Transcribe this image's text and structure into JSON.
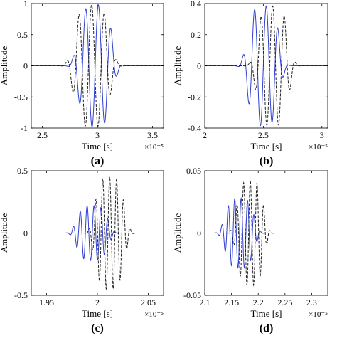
{
  "chart_data": [
    {
      "type": "line",
      "panel_label": "(a)",
      "xlabel": "Time [s]",
      "ylabel": "Amplitude",
      "x_exponent": "×10⁻⁵",
      "xlim": [
        2.4,
        3.6
      ],
      "ylim": [
        -1,
        1
      ],
      "xticks": [
        2.5,
        3,
        3.5
      ],
      "yticks": [
        -1,
        -0.5,
        0,
        0.5,
        1
      ],
      "xticklabels": [
        "2.5",
        "3",
        "3.5"
      ],
      "yticklabels": [
        "-1",
        "-0.5",
        "0",
        "0.5",
        "1"
      ],
      "series": [
        {
          "style": "solid",
          "color": "#2f3fd0",
          "center": 2.98,
          "width": 0.17,
          "period": 0.115,
          "amplitude": 0.98,
          "phase": 0.0
        },
        {
          "style": "dashed",
          "color": "#222222",
          "center": 2.95,
          "width": 0.18,
          "period": 0.115,
          "amplitude": 0.98,
          "phase": 1.7
        }
      ]
    },
    {
      "type": "line",
      "panel_label": "(b)",
      "xlabel": "Time [s]",
      "ylabel": "Amplitude",
      "x_exponent": "×10⁻⁵",
      "xlim": [
        2.0,
        3.05
      ],
      "ylim": [
        -0.4,
        0.4
      ],
      "xticks": [
        2,
        2.5,
        3
      ],
      "yticks": [
        -0.4,
        -0.2,
        0,
        0.2,
        0.4
      ],
      "xticklabels": [
        "2",
        "2.5",
        "3"
      ],
      "yticklabels": [
        "-0.4",
        "-0.2",
        "0",
        "0.2",
        "0.4"
      ],
      "series": [
        {
          "style": "solid",
          "color": "#2f3fd0",
          "center": 2.5,
          "width": 0.15,
          "period": 0.1,
          "amplitude": 0.385,
          "phase": 0.0
        },
        {
          "style": "dashed",
          "color": "#222222",
          "center": 2.58,
          "width": 0.15,
          "period": 0.1,
          "amplitude": 0.385,
          "phase": 1.6
        }
      ]
    },
    {
      "type": "line",
      "panel_label": "(c)",
      "xlabel": "Time [s]",
      "ylabel": "Amplitude",
      "x_exponent": "×10⁻⁵",
      "xlim": [
        1.935,
        2.065
      ],
      "ylim": [
        -0.5,
        0.5
      ],
      "xticks": [
        1.95,
        2,
        2.05
      ],
      "yticks": [
        -0.5,
        0,
        0.5
      ],
      "xticklabels": [
        "1.95",
        "2",
        "2.05"
      ],
      "yticklabels": [
        "-0.5",
        "0",
        "0.5"
      ],
      "series": [
        {
          "style": "solid",
          "color": "#2f3fd0",
          "center": 1.995,
          "width": 0.017,
          "period": 0.0068,
          "amplitude": 0.22,
          "phase": 0.0
        },
        {
          "style": "dashed",
          "color": "#222222",
          "center": 2.012,
          "width": 0.016,
          "period": 0.0068,
          "amplitude": 0.45,
          "phase": 1.5
        }
      ]
    },
    {
      "type": "line",
      "panel_label": "(d)",
      "xlabel": "Time [s]",
      "ylabel": "Amplitude",
      "x_exponent": "×10⁻⁵",
      "xlim": [
        2.1,
        2.33
      ],
      "ylim": [
        -0.05,
        0.05
      ],
      "xticks": [
        2.1,
        2.15,
        2.2,
        2.25,
        2.3
      ],
      "yticks": [
        -0.05,
        0,
        0.05
      ],
      "xticklabels": [
        "2.1",
        "2.15",
        "2.2",
        "2.25",
        "2.3"
      ],
      "yticklabels": [
        "-0.05",
        "0",
        "0.05"
      ],
      "series": [
        {
          "style": "solid",
          "color": "#2f3fd0",
          "center": 2.165,
          "width": 0.03,
          "period": 0.012,
          "amplitude": 0.028,
          "phase": 0.0
        },
        {
          "style": "dashed",
          "color": "#222222",
          "center": 2.185,
          "width": 0.028,
          "period": 0.0125,
          "amplitude": 0.042,
          "phase": 1.5
        }
      ]
    }
  ]
}
